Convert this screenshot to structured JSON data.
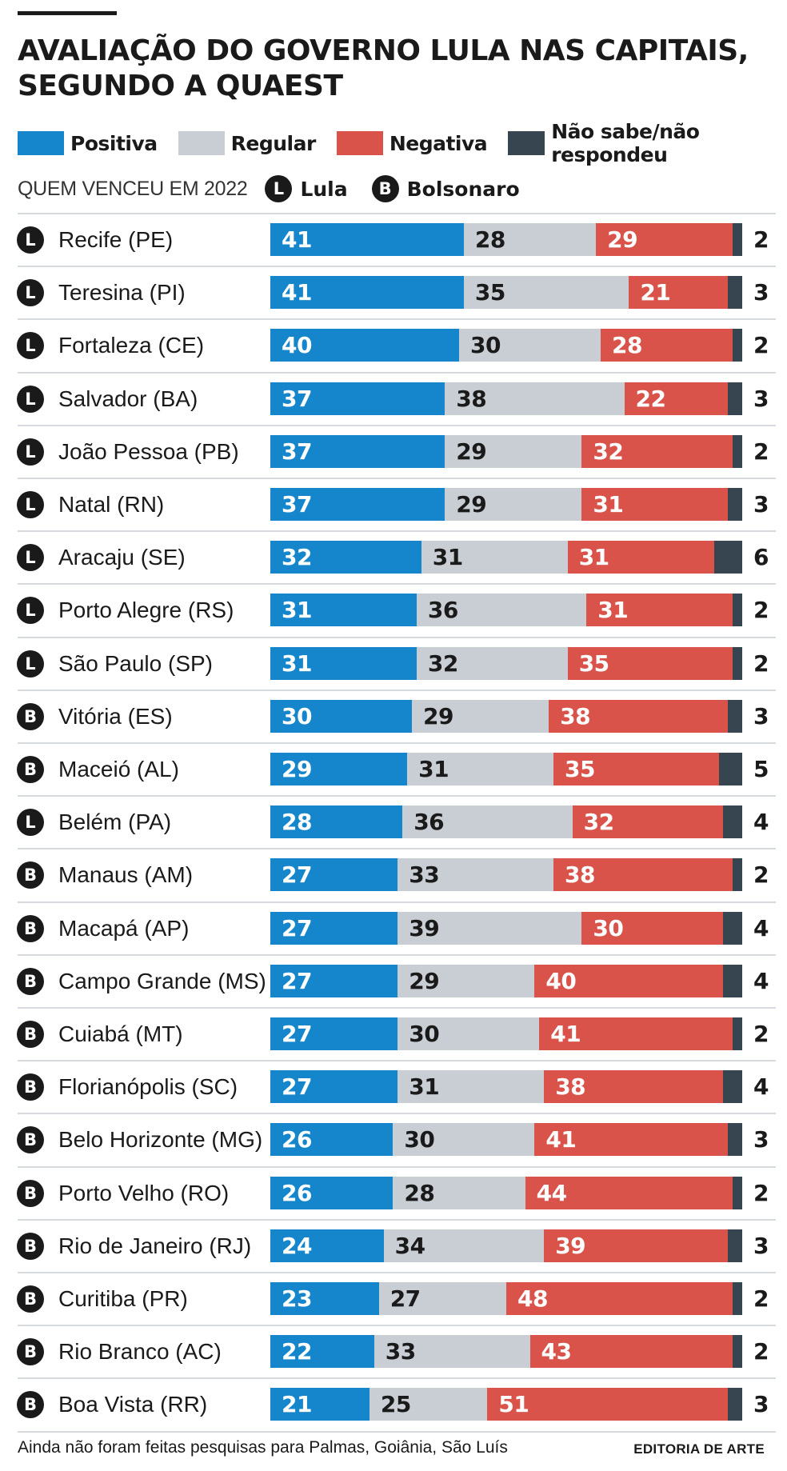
{
  "header": {
    "title": "AVALIAÇÃO DO GOVERNO LULA NAS CAPITAIS, SEGUNDO A QUAEST"
  },
  "legend": {
    "items": [
      {
        "label": "Positiva",
        "color": "#1586cc"
      },
      {
        "label": "Regular",
        "color": "#c9ced4"
      },
      {
        "label": "Negativa",
        "color": "#d9534a"
      },
      {
        "label": "Não sabe/não respondeu",
        "color": "#36454f"
      }
    ]
  },
  "winner_key": {
    "caption": "QUEM VENCEU EM 2022",
    "lula": {
      "letter": "L",
      "label": "Lula"
    },
    "bolsonaro": {
      "letter": "B",
      "label": "Bolsonaro"
    }
  },
  "chart_data": {
    "type": "bar",
    "stacked": true,
    "orientation": "horizontal",
    "title": "AVALIAÇÃO DO GOVERNO LULA NAS CAPITAIS, SEGUNDO A QUAEST",
    "series_names": [
      "Positiva",
      "Regular",
      "Negativa",
      "Não sabe/não respondeu"
    ],
    "colors": [
      "#1586cc",
      "#c9ced4",
      "#d9534a",
      "#36454f"
    ],
    "rows": [
      {
        "city": "Recife (PE)",
        "winner": "L",
        "values": [
          41,
          28,
          29,
          2
        ]
      },
      {
        "city": "Teresina (PI)",
        "winner": "L",
        "values": [
          41,
          35,
          21,
          3
        ]
      },
      {
        "city": "Fortaleza (CE)",
        "winner": "L",
        "values": [
          40,
          30,
          28,
          2
        ]
      },
      {
        "city": "Salvador (BA)",
        "winner": "L",
        "values": [
          37,
          38,
          22,
          3
        ]
      },
      {
        "city": "João Pessoa (PB)",
        "winner": "L",
        "values": [
          37,
          29,
          32,
          2
        ]
      },
      {
        "city": "Natal (RN)",
        "winner": "L",
        "values": [
          37,
          29,
          31,
          3
        ]
      },
      {
        "city": "Aracaju (SE)",
        "winner": "L",
        "values": [
          32,
          31,
          31,
          6
        ]
      },
      {
        "city": "Porto Alegre (RS)",
        "winner": "L",
        "values": [
          31,
          36,
          31,
          2
        ]
      },
      {
        "city": "São Paulo (SP)",
        "winner": "L",
        "values": [
          31,
          32,
          35,
          2
        ]
      },
      {
        "city": "Vitória (ES)",
        "winner": "B",
        "values": [
          30,
          29,
          38,
          3
        ]
      },
      {
        "city": "Maceió (AL)",
        "winner": "B",
        "values": [
          29,
          31,
          35,
          5
        ]
      },
      {
        "city": "Belém (PA)",
        "winner": "L",
        "values": [
          28,
          36,
          32,
          4
        ]
      },
      {
        "city": "Manaus (AM)",
        "winner": "B",
        "values": [
          27,
          33,
          38,
          2
        ]
      },
      {
        "city": "Macapá (AP)",
        "winner": "B",
        "values": [
          27,
          39,
          30,
          4
        ]
      },
      {
        "city": "Campo Grande (MS)",
        "winner": "B",
        "values": [
          27,
          29,
          40,
          4
        ]
      },
      {
        "city": "Cuiabá (MT)",
        "winner": "B",
        "values": [
          27,
          30,
          41,
          2
        ]
      },
      {
        "city": "Florianópolis (SC)",
        "winner": "B",
        "values": [
          27,
          31,
          38,
          4
        ]
      },
      {
        "city": "Belo Horizonte (MG)",
        "winner": "B",
        "values": [
          26,
          30,
          41,
          3
        ]
      },
      {
        "city": "Porto Velho (RO)",
        "winner": "B",
        "values": [
          26,
          28,
          44,
          2
        ]
      },
      {
        "city": "Rio de Janeiro (RJ)",
        "winner": "B",
        "values": [
          24,
          34,
          39,
          3
        ]
      },
      {
        "city": "Curitiba (PR)",
        "winner": "B",
        "values": [
          23,
          27,
          48,
          2
        ]
      },
      {
        "city": "Rio Branco (AC)",
        "winner": "B",
        "values": [
          22,
          33,
          43,
          2
        ]
      },
      {
        "city": "Boa Vista (RR)",
        "winner": "B",
        "values": [
          21,
          25,
          51,
          3
        ]
      }
    ]
  },
  "footer": {
    "note": "Ainda não foram feitas pesquisas para Palmas, Goiânia, São Luís",
    "credit": "EDITORIA DE ARTE"
  }
}
